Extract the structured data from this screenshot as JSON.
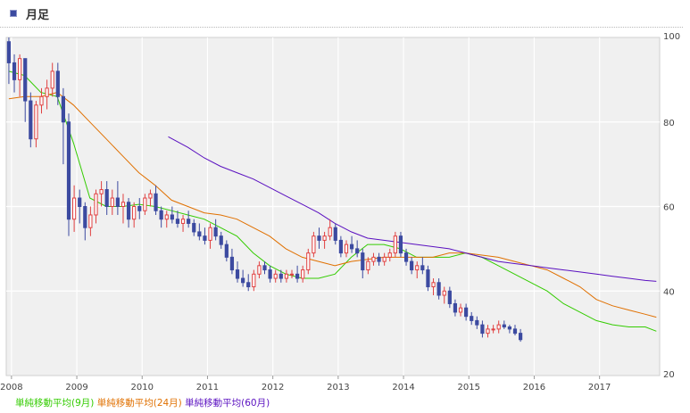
{
  "header": {
    "title": "月足"
  },
  "legend": {
    "items": [
      {
        "label": "単純移動平均(9月)",
        "color": "#33cc00"
      },
      {
        "label": "単純移動平均(24月)",
        "color": "#e07000"
      },
      {
        "label": "単純移動平均(60月)",
        "color": "#5a10c0"
      }
    ]
  },
  "colors": {
    "up": "#e04040",
    "down": "#3c4aa0",
    "plot_bg": "#f0f0f0",
    "grid": "#ffffff"
  },
  "chart_data": {
    "type": "candlestick",
    "title": "月足",
    "x_labels": [
      "2008",
      "2009",
      "2010",
      "2011",
      "2012",
      "2013",
      "2014",
      "2015",
      "2016",
      "2017"
    ],
    "y_ticks": [
      20,
      40,
      60,
      80,
      100
    ],
    "y_tick_labels": [
      "20",
      "40",
      "60",
      "80",
      "100"
    ],
    "ylim": [
      20,
      100
    ],
    "x_start": 2007.92,
    "x_end": 2017.92,
    "grid": true,
    "y_axis_side": "right",
    "candles_start": 2007.96,
    "candle_step": 0.0833,
    "candles": [
      [
        99,
        100,
        89,
        94
      ],
      [
        94,
        96,
        87,
        90
      ],
      [
        90,
        96,
        86,
        95
      ],
      [
        95,
        95,
        80,
        85
      ],
      [
        85,
        87,
        74,
        76
      ],
      [
        76,
        85,
        74,
        84
      ],
      [
        84,
        88,
        82,
        86
      ],
      [
        86,
        90,
        83,
        88
      ],
      [
        88,
        94,
        86,
        92
      ],
      [
        92,
        94,
        84,
        86
      ],
      [
        86,
        88,
        70,
        80
      ],
      [
        80,
        82,
        53,
        57
      ],
      [
        57,
        65,
        54,
        62
      ],
      [
        62,
        64,
        56,
        60
      ],
      [
        60,
        61,
        52,
        55
      ],
      [
        55,
        60,
        53,
        58
      ],
      [
        58,
        64,
        56,
        63
      ],
      [
        63,
        66,
        60,
        64
      ],
      [
        64,
        66,
        58,
        60
      ],
      [
        60,
        64,
        58,
        62
      ],
      [
        62,
        66,
        58,
        60
      ],
      [
        60,
        63,
        56,
        61
      ],
      [
        61,
        62,
        55,
        57
      ],
      [
        57,
        61,
        55,
        60
      ],
      [
        60,
        62,
        57,
        59
      ],
      [
        59,
        63,
        58,
        62
      ],
      [
        62,
        64,
        60,
        63
      ],
      [
        63,
        65,
        58,
        59
      ],
      [
        59,
        60,
        55,
        57
      ],
      [
        57,
        59,
        55,
        58
      ],
      [
        58,
        60,
        56,
        57
      ],
      [
        57,
        59,
        55,
        56
      ],
      [
        56,
        58,
        54,
        57
      ],
      [
        57,
        59,
        55,
        56
      ],
      [
        56,
        57,
        53,
        54
      ],
      [
        54,
        56,
        52,
        53
      ],
      [
        53,
        55,
        51,
        52
      ],
      [
        52,
        56,
        50,
        55
      ],
      [
        55,
        57,
        52,
        53
      ],
      [
        53,
        54,
        50,
        51
      ],
      [
        51,
        52,
        47,
        48
      ],
      [
        48,
        50,
        44,
        45
      ],
      [
        45,
        47,
        42,
        43
      ],
      [
        43,
        45,
        41,
        42
      ],
      [
        42,
        44,
        40,
        41
      ],
      [
        41,
        45,
        40,
        44
      ],
      [
        44,
        47,
        43,
        46
      ],
      [
        46,
        47,
        44,
        45
      ],
      [
        45,
        46,
        42,
        43
      ],
      [
        43,
        45,
        42,
        44
      ],
      [
        44,
        45,
        42,
        43
      ],
      [
        43,
        45,
        42,
        44
      ],
      [
        44,
        45,
        43,
        44
      ],
      [
        44,
        46,
        42,
        43
      ],
      [
        43,
        46,
        42,
        45
      ],
      [
        45,
        50,
        44,
        49
      ],
      [
        49,
        54,
        48,
        53
      ],
      [
        53,
        55,
        50,
        52
      ],
      [
        52,
        54,
        50,
        53
      ],
      [
        53,
        57,
        52,
        55
      ],
      [
        55,
        56,
        51,
        52
      ],
      [
        52,
        53,
        48,
        49
      ],
      [
        49,
        52,
        48,
        51
      ],
      [
        51,
        53,
        49,
        50
      ],
      [
        50,
        52,
        48,
        49
      ],
      [
        49,
        50,
        43,
        45
      ],
      [
        45,
        48,
        44,
        47
      ],
      [
        47,
        49,
        46,
        48
      ],
      [
        48,
        49,
        46,
        47
      ],
      [
        47,
        49,
        46,
        48
      ],
      [
        48,
        50,
        47,
        49
      ],
      [
        49,
        54,
        48,
        53
      ],
      [
        53,
        54,
        48,
        49
      ],
      [
        49,
        50,
        46,
        47
      ],
      [
        47,
        48,
        44,
        45
      ],
      [
        45,
        47,
        43,
        46
      ],
      [
        46,
        48,
        44,
        45
      ],
      [
        45,
        46,
        40,
        41
      ],
      [
        41,
        43,
        39,
        42
      ],
      [
        42,
        43,
        38,
        39
      ],
      [
        39,
        41,
        37,
        40
      ],
      [
        40,
        41,
        36,
        37
      ],
      [
        37,
        38,
        34,
        35
      ],
      [
        35,
        37,
        34,
        36
      ],
      [
        36,
        37,
        33,
        34
      ],
      [
        34,
        35,
        32,
        33
      ],
      [
        33,
        34,
        31,
        32
      ],
      [
        32,
        33,
        29,
        30
      ],
      [
        30,
        32,
        29,
        31
      ],
      [
        31,
        32,
        30,
        31
      ],
      [
        31,
        33,
        30,
        32
      ],
      [
        32,
        33,
        31,
        31.5
      ],
      [
        31.5,
        32,
        30,
        31
      ],
      [
        31,
        32,
        29.5,
        30
      ],
      [
        30,
        31,
        28,
        28.5
      ]
    ],
    "series": [
      {
        "name": "単純移動平均(9月)",
        "color": "#33cc00",
        "points": [
          [
            2007.96,
            92
          ],
          [
            2008.2,
            91
          ],
          [
            2008.45,
            87
          ],
          [
            2008.7,
            86
          ],
          [
            2008.95,
            75
          ],
          [
            2009.2,
            62
          ],
          [
            2009.45,
            60
          ],
          [
            2009.7,
            60
          ],
          [
            2009.95,
            60.5
          ],
          [
            2010.2,
            60
          ],
          [
            2010.45,
            59
          ],
          [
            2010.7,
            58
          ],
          [
            2010.95,
            57
          ],
          [
            2011.2,
            55
          ],
          [
            2011.45,
            53
          ],
          [
            2011.7,
            49
          ],
          [
            2011.95,
            46
          ],
          [
            2012.2,
            44
          ],
          [
            2012.45,
            43
          ],
          [
            2012.7,
            43
          ],
          [
            2012.95,
            44
          ],
          [
            2013.2,
            48
          ],
          [
            2013.45,
            51
          ],
          [
            2013.7,
            51
          ],
          [
            2013.95,
            50
          ],
          [
            2014.2,
            48
          ],
          [
            2014.45,
            48
          ],
          [
            2014.7,
            48
          ],
          [
            2014.95,
            49
          ],
          [
            2015.2,
            48
          ],
          [
            2015.45,
            46
          ],
          [
            2015.7,
            44
          ],
          [
            2015.95,
            42
          ],
          [
            2016.2,
            40
          ],
          [
            2016.45,
            37
          ],
          [
            2016.7,
            35
          ],
          [
            2016.95,
            33
          ],
          [
            2017.2,
            32
          ],
          [
            2017.45,
            31.5
          ],
          [
            2017.7,
            31.5
          ],
          [
            2017.87,
            30.5
          ]
        ]
      },
      {
        "name": "単純移動平均(24月)",
        "color": "#e07000",
        "points": [
          [
            2007.96,
            85.5
          ],
          [
            2008.2,
            86
          ],
          [
            2008.45,
            86
          ],
          [
            2008.7,
            87
          ],
          [
            2008.95,
            84
          ],
          [
            2009.2,
            80
          ],
          [
            2009.45,
            76
          ],
          [
            2009.7,
            72
          ],
          [
            2009.95,
            68
          ],
          [
            2010.2,
            65
          ],
          [
            2010.45,
            61.5
          ],
          [
            2010.7,
            60
          ],
          [
            2010.95,
            58.5
          ],
          [
            2011.2,
            58
          ],
          [
            2011.45,
            57
          ],
          [
            2011.7,
            55
          ],
          [
            2011.95,
            53
          ],
          [
            2012.2,
            50
          ],
          [
            2012.45,
            48
          ],
          [
            2012.7,
            47
          ],
          [
            2012.95,
            46
          ],
          [
            2013.2,
            47
          ],
          [
            2013.45,
            47.5
          ],
          [
            2013.7,
            48
          ],
          [
            2013.95,
            48
          ],
          [
            2014.2,
            48
          ],
          [
            2014.45,
            48
          ],
          [
            2014.7,
            49
          ],
          [
            2014.95,
            49
          ],
          [
            2015.2,
            48.5
          ],
          [
            2015.45,
            48
          ],
          [
            2015.7,
            47
          ],
          [
            2015.95,
            46
          ],
          [
            2016.2,
            45
          ],
          [
            2016.45,
            43
          ],
          [
            2016.7,
            41
          ],
          [
            2016.95,
            38
          ],
          [
            2017.2,
            36.5
          ],
          [
            2017.45,
            35.5
          ],
          [
            2017.7,
            34.5
          ],
          [
            2017.87,
            33.8
          ]
        ]
      },
      {
        "name": "単純移動平均(60月)",
        "color": "#5a10c0",
        "points": [
          [
            2010.4,
            76.5
          ],
          [
            2010.7,
            74
          ],
          [
            2010.95,
            71.5
          ],
          [
            2011.2,
            69.5
          ],
          [
            2011.45,
            68
          ],
          [
            2011.7,
            66.5
          ],
          [
            2011.95,
            64.5
          ],
          [
            2012.2,
            62.5
          ],
          [
            2012.45,
            60.5
          ],
          [
            2012.7,
            58.5
          ],
          [
            2012.95,
            56
          ],
          [
            2013.2,
            54
          ],
          [
            2013.45,
            52.5
          ],
          [
            2013.7,
            52
          ],
          [
            2013.95,
            51.5
          ],
          [
            2014.2,
            51
          ],
          [
            2014.45,
            50.5
          ],
          [
            2014.7,
            50
          ],
          [
            2014.95,
            49
          ],
          [
            2015.2,
            48
          ],
          [
            2015.45,
            47
          ],
          [
            2015.7,
            46.5
          ],
          [
            2015.95,
            46
          ],
          [
            2016.2,
            45.5
          ],
          [
            2016.45,
            45
          ],
          [
            2016.7,
            44.5
          ],
          [
            2016.95,
            44
          ],
          [
            2017.2,
            43.5
          ],
          [
            2017.45,
            43
          ],
          [
            2017.7,
            42.5
          ],
          [
            2017.87,
            42.3
          ]
        ]
      }
    ]
  }
}
